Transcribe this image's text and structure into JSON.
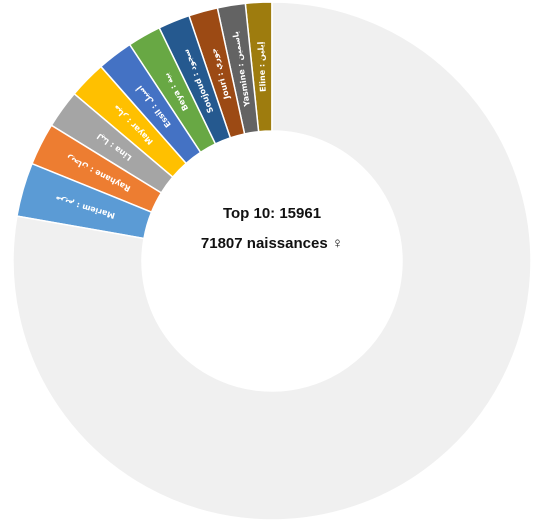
{
  "chart_data": {
    "type": "pie",
    "variant": "donut",
    "center": {
      "line1": "Top 10:  15961",
      "line2": "71807 naissances ♀"
    },
    "total": 71807,
    "slices": [
      {
        "label": "Eline : إيلين",
        "value": 1180,
        "color": "#9E7C0E"
      },
      {
        "label": "Yasmine : ياسمين",
        "value": 1250,
        "color": "#636363"
      },
      {
        "label": "Jouri : جوري",
        "value": 1300,
        "color": "#9C4A14"
      },
      {
        "label": "Soujoud : سجود",
        "value": 1420,
        "color": "#25598F"
      },
      {
        "label": "Beya : بية",
        "value": 1500,
        "color": "#68A844"
      },
      {
        "label": "Essil : أسيل",
        "value": 1600,
        "color": "#4472C4"
      },
      {
        "label": "Mayar : ميار",
        "value": 1680,
        "color": "#FFC000"
      },
      {
        "label": "Lina : لينا",
        "value": 1720,
        "color": "#A5A5A5"
      },
      {
        "label": "Rayhane : ريحان",
        "value": 1900,
        "color": "#ED7D31"
      },
      {
        "label": "Mariem : مريم",
        "value": 2411,
        "color": "#5B9BD5"
      },
      {
        "label": "",
        "value": 55846,
        "color": "#F0F0F0"
      }
    ]
  }
}
